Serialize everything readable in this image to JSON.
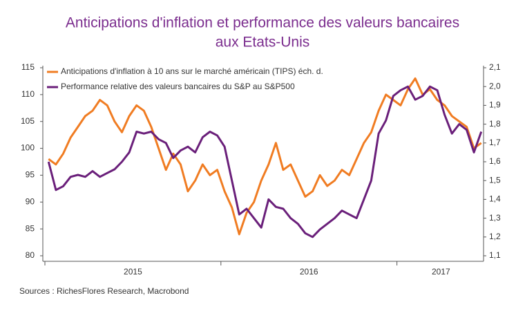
{
  "chart_data": {
    "type": "line",
    "title": "Anticipations d'inflation et performance des valeurs bancaires",
    "subtitle": "aux Etats-Unis",
    "source": "Sources : RichesFlores Research, Macrobond",
    "categories": [
      null,
      null,
      null,
      null,
      null,
      null,
      null,
      null,
      null,
      null,
      null,
      null,
      "2015",
      null,
      null,
      null,
      null,
      null,
      null,
      null,
      null,
      null,
      null,
      null,
      null,
      null,
      null,
      null,
      null,
      null,
      null,
      null,
      null,
      null,
      null,
      null,
      "2016",
      null,
      null,
      null,
      null,
      null,
      null,
      null,
      null,
      null,
      null,
      null,
      null,
      null,
      null,
      null,
      null,
      null,
      "2017",
      null,
      null,
      null,
      null,
      null
    ],
    "series": [
      {
        "name": "Anticipations d'inflation à 10 ans sur le marché américain (TIPS) éch. d.",
        "color": "#f07c22",
        "values": [
          98,
          97,
          99,
          102,
          104,
          106,
          107,
          109,
          108,
          105,
          103,
          106,
          108,
          107,
          104,
          100,
          96,
          99,
          97,
          92,
          94,
          97,
          95,
          96,
          92,
          89,
          84,
          88,
          90,
          94,
          97,
          101,
          96,
          97,
          94,
          91,
          92,
          95,
          93,
          94,
          96,
          95,
          98,
          101,
          103,
          107,
          110,
          109,
          108,
          111,
          113,
          110,
          111,
          109,
          108,
          106,
          105,
          104,
          100,
          101
        ]
      },
      {
        "name": "Performance relative des valeurs bancaires du S&P au S&P500",
        "color": "#6a1f7a",
        "axis": "y2",
        "values": [
          1.6,
          1.45,
          1.47,
          1.52,
          1.53,
          1.52,
          1.55,
          1.52,
          1.54,
          1.56,
          1.6,
          1.65,
          1.76,
          1.75,
          1.76,
          1.72,
          1.7,
          1.62,
          1.66,
          1.68,
          1.65,
          1.73,
          1.76,
          1.74,
          1.68,
          1.5,
          1.32,
          1.35,
          1.3,
          1.25,
          1.4,
          1.36,
          1.35,
          1.3,
          1.27,
          1.22,
          1.2,
          1.24,
          1.27,
          1.3,
          1.34,
          1.32,
          1.3,
          1.4,
          1.5,
          1.75,
          1.82,
          1.95,
          1.98,
          2.0,
          1.93,
          1.95,
          2.0,
          1.98,
          1.85,
          1.75,
          1.8,
          1.77,
          1.65,
          1.76
        ]
      }
    ],
    "ylim": [
      80,
      115
    ],
    "yticks": [
      80,
      85,
      90,
      95,
      100,
      105,
      110,
      115
    ],
    "y2lim": [
      1.1,
      2.1
    ],
    "y2ticks": [
      {
        "value": 1.1,
        "label": "1,1"
      },
      {
        "value": 1.2,
        "label": "1,2"
      },
      {
        "value": 1.3,
        "label": "1,3"
      },
      {
        "value": 1.4,
        "label": "1,4"
      },
      {
        "value": 1.5,
        "label": "1,5"
      },
      {
        "value": 1.6,
        "label": "1,6"
      },
      {
        "value": 1.7,
        "label": "1,7"
      },
      {
        "value": 1.8,
        "label": "1,8"
      },
      {
        "value": 1.9,
        "label": "1,9"
      },
      {
        "value": 2.0,
        "label": "2,0"
      },
      {
        "value": 2.1,
        "label": "2,1"
      }
    ],
    "grid": false,
    "legend": "top-left"
  }
}
